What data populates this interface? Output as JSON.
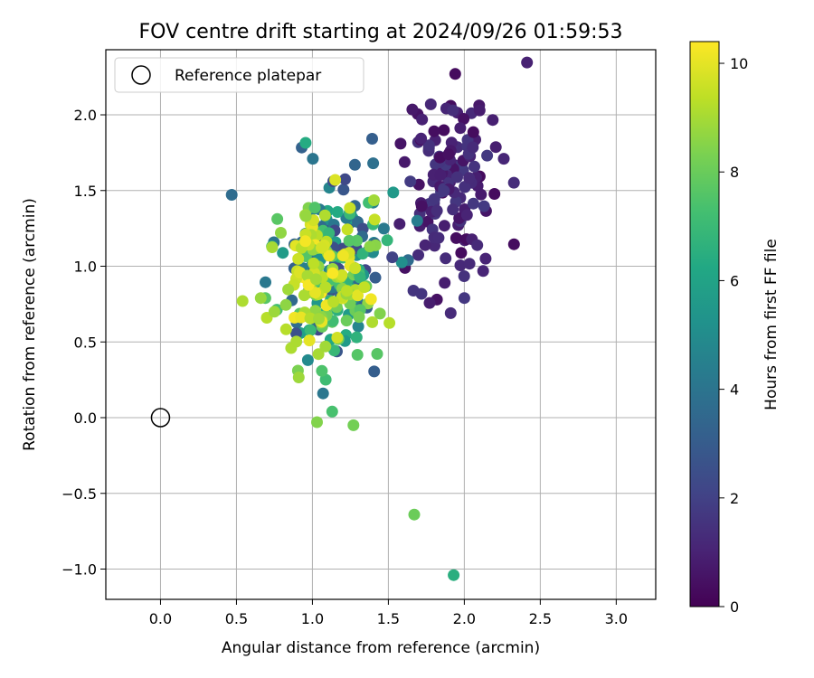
{
  "chart_data": {
    "type": "scatter",
    "title": "FOV centre drift starting at 2024/09/26 01:59:53",
    "xlabel": "Angular distance from reference (arcmin)",
    "ylabel": "Rotation from reference (arcmin)",
    "xlim": [
      -0.36,
      3.26
    ],
    "ylim": [
      -1.2,
      2.43
    ],
    "xticks": [
      0.0,
      0.5,
      1.0,
      1.5,
      2.0,
      2.5,
      3.0
    ],
    "xtick_labels": [
      "0.0",
      "0.5",
      "1.0",
      "1.5",
      "2.0",
      "2.5",
      "3.0"
    ],
    "yticks": [
      -1.0,
      -0.5,
      0.0,
      0.5,
      1.0,
      1.5,
      2.0
    ],
    "ytick_labels": [
      "−1.0",
      "−0.5",
      "0.0",
      "0.5",
      "1.0",
      "1.5",
      "2.0"
    ],
    "grid": true,
    "legend": {
      "placement": "upper-left",
      "entries": [
        "Reference platepar"
      ]
    },
    "reference_point": {
      "x": 0.0,
      "y": 0.0
    },
    "colorbar": {
      "label": "Hours from first FF file",
      "colormap": "viridis",
      "range": [
        0,
        10.4
      ],
      "ticks": [
        0,
        2,
        4,
        6,
        8,
        10
      ],
      "tick_labels": [
        "0",
        "2",
        "4",
        "6",
        "8",
        "10"
      ]
    },
    "point_groups": [
      {
        "hours": [
          0.3,
          1.8
        ],
        "cx": 1.92,
        "cy": 1.55,
        "sx": 0.17,
        "sy": 0.34,
        "count": 130,
        "fixed": [
          [
            1.94,
            2.27
          ],
          [
            1.91,
            2.06
          ],
          [
            2.26,
            1.71
          ],
          [
            1.91,
            0.69
          ],
          [
            2.0,
            0.79
          ],
          [
            1.82,
            0.78
          ],
          [
            2.14,
            1.05
          ]
        ]
      },
      {
        "hours": [
          2.0,
          6.5
        ],
        "cx": 1.14,
        "cy": 1.05,
        "sx": 0.16,
        "sy": 0.3,
        "count": 110,
        "fixed": [
          [
            1.28,
            1.67
          ],
          [
            1.4,
            1.68
          ],
          [
            1.69,
            1.3
          ],
          [
            1.63,
            1.04
          ],
          [
            1.07,
            0.16
          ],
          [
            0.97,
            0.38
          ]
        ]
      },
      {
        "hours": [
          6.5,
          8.6
        ],
        "cx": 1.2,
        "cy": 0.9,
        "sx": 0.15,
        "sy": 0.28,
        "count": 70,
        "fixed": [
          [
            1.03,
            -0.03
          ],
          [
            1.13,
            0.04
          ],
          [
            1.27,
            -0.05
          ],
          [
            1.67,
            -0.64
          ],
          [
            1.93,
            -1.04
          ],
          [
            1.37,
            1.42
          ],
          [
            0.69,
            0.79
          ]
        ]
      },
      {
        "hours": [
          8.6,
          10.4
        ],
        "cx": 1.06,
        "cy": 0.92,
        "sx": 0.16,
        "sy": 0.26,
        "count": 90,
        "fixed": [
          [
            0.54,
            0.77
          ],
          [
            0.66,
            0.79
          ],
          [
            0.7,
            0.66
          ],
          [
            0.75,
            0.7
          ],
          [
            0.86,
            0.46
          ],
          [
            1.15,
            1.57
          ],
          [
            1.04,
            0.42
          ],
          [
            0.98,
            0.51
          ]
        ]
      }
    ]
  }
}
